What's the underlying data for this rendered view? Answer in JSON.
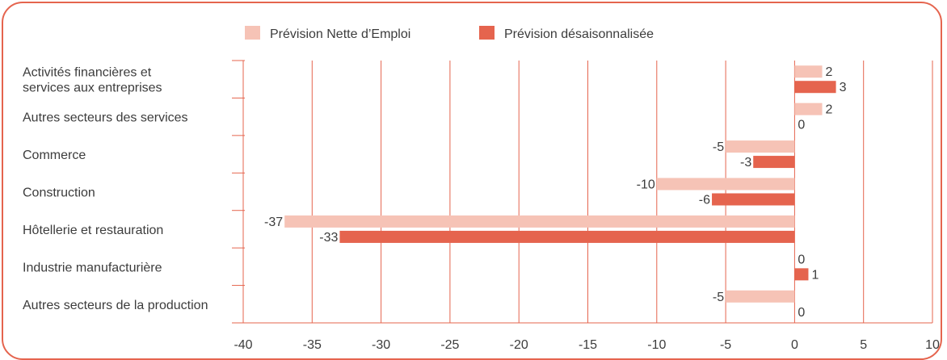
{
  "colors": {
    "border": "#e5644e",
    "grid": "#e5644e",
    "series1": "#f6c3b6",
    "series2": "#e5644e",
    "text": "#3c3c3c"
  },
  "legend": {
    "series1": "Prévision Nette d’Emploi",
    "series2": "Prévision désaisonnalisée"
  },
  "chart_data": {
    "type": "bar",
    "orientation": "horizontal",
    "categories": [
      [
        "Activités financières et",
        "services aux entreprises"
      ],
      [
        "Autres secteurs des services"
      ],
      [
        "Commerce"
      ],
      [
        "Construction"
      ],
      [
        "Hôtellerie et restauration"
      ],
      [
        "Industrie manufacturière"
      ],
      [
        "Autres secteurs de la production"
      ]
    ],
    "series": [
      {
        "name": "Prévision Nette d’Emploi",
        "values": [
          2,
          2,
          -5,
          -10,
          -37,
          0,
          -5
        ]
      },
      {
        "name": "Prévision désaisonnalisée",
        "values": [
          3,
          0,
          -3,
          -6,
          -33,
          1,
          0
        ]
      }
    ],
    "xlim": [
      -40,
      10
    ],
    "xticks": [
      -40,
      -35,
      -30,
      -25,
      -20,
      -15,
      -10,
      -5,
      0,
      5,
      10
    ],
    "grid": "vertical",
    "legend_position": "top"
  }
}
